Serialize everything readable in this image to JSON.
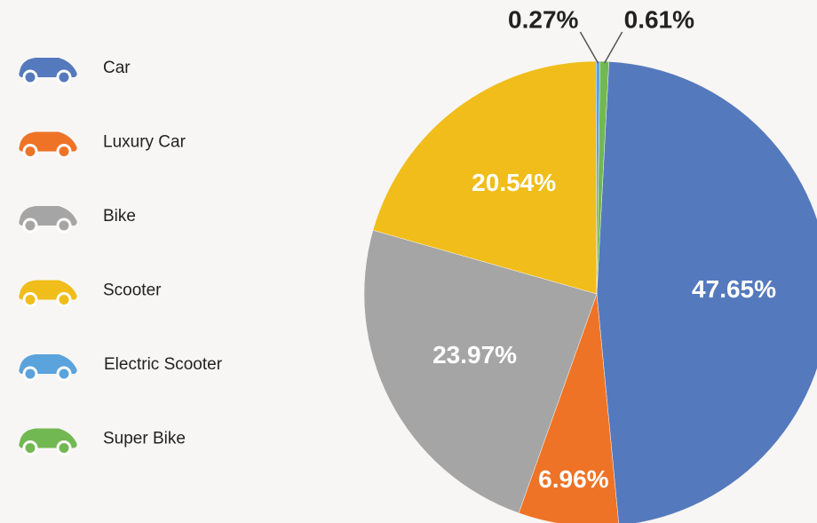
{
  "chart_data": {
    "type": "pie",
    "categories": [
      "Car",
      "Luxury Car",
      "Bike",
      "Scooter",
      "Electric Scooter",
      "Super Bike"
    ],
    "values": [
      47.65,
      6.96,
      23.97,
      20.54,
      0.27,
      0.61
    ],
    "value_labels": [
      "47.65%",
      "6.96%",
      "23.97%",
      "20.54%",
      "0.27%",
      "0.61%"
    ],
    "colors": [
      "#5479bd",
      "#ee7326",
      "#a5a5a5",
      "#f0bd1a",
      "#5ba3dc",
      "#72b852"
    ]
  }
}
